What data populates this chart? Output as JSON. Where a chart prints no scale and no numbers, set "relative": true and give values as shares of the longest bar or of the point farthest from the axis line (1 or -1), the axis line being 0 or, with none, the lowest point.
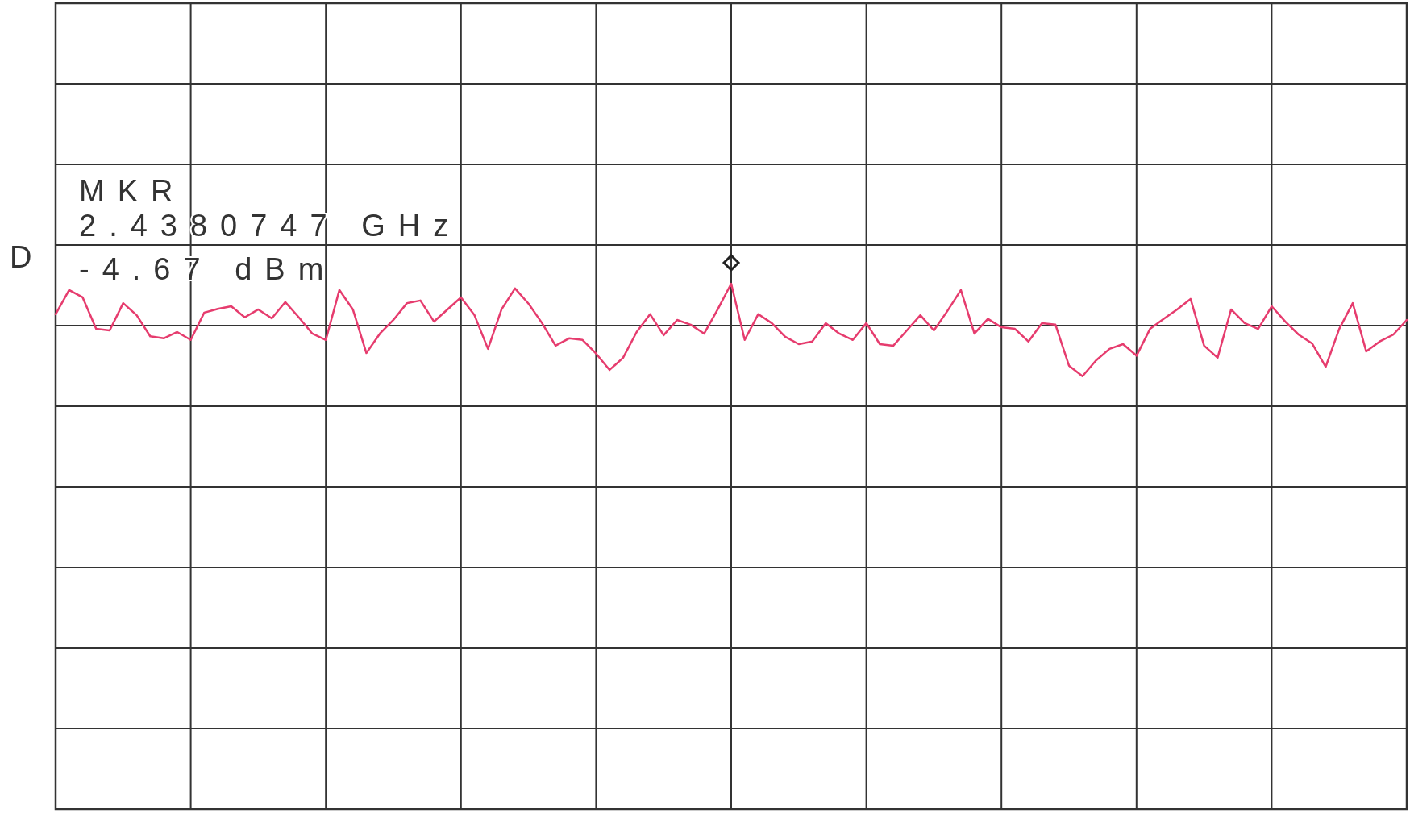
{
  "chart_data": {
    "type": "line",
    "relative": true,
    "grid": true,
    "marker": "none",
    "line_style": "solid",
    "categories": [
      null,
      null,
      null,
      null,
      null,
      null,
      null,
      null,
      null,
      null,
      null,
      null,
      null,
      null,
      null,
      null,
      null,
      null,
      null,
      null,
      null,
      null,
      null,
      null,
      null,
      null,
      null,
      null,
      null,
      null,
      null,
      null,
      null,
      null,
      null,
      null,
      null,
      null,
      null,
      null,
      null,
      null,
      null,
      null,
      null,
      null,
      null,
      null,
      null,
      null,
      null,
      null,
      null,
      null,
      null,
      null,
      null,
      null,
      null,
      null,
      null,
      null,
      null,
      null,
      null,
      null,
      null,
      null,
      null,
      null,
      null,
      null,
      null,
      null,
      null,
      null,
      null,
      null,
      null,
      null,
      null,
      null,
      null,
      null,
      null,
      null,
      null,
      null,
      null,
      null,
      null,
      null,
      null,
      null,
      null,
      null,
      null,
      null,
      null,
      null,
      null
    ],
    "series": [
      {
        "color": "#e63c6e",
        "values": [
          0.942,
          0.988,
          0.974,
          0.914,
          0.911,
          0.963,
          0.94,
          0.9,
          0.896,
          0.908,
          0.893,
          0.945,
          0.952,
          0.957,
          0.936,
          0.951,
          0.934,
          0.965,
          0.936,
          0.905,
          0.893,
          0.988,
          0.951,
          0.868,
          0.905,
          0.931,
          0.963,
          0.968,
          0.928,
          0.951,
          0.974,
          0.94,
          0.876,
          0.951,
          0.991,
          0.962,
          0.925,
          0.882,
          0.896,
          0.893,
          0.867,
          0.836,
          0.859,
          0.908,
          0.942,
          0.902,
          0.931,
          0.922,
          0.905,
          0.951,
          1,
          0.893,
          0.942,
          0.925,
          0.899,
          0.885,
          0.89,
          0.925,
          0.905,
          0.893,
          0.925,
          0.885,
          0.882,
          0.911,
          0.94,
          0.911,
          0.948,
          0.988,
          0.905,
          0.933,
          0.917,
          0.914,
          0.89,
          0.925,
          0.922,
          0.844,
          0.824,
          0.854,
          0.876,
          0.885,
          0.863,
          0.914,
          0.933,
          0.951,
          0.971,
          0.882,
          0.859,
          0.951,
          0.925,
          0.914,
          0.957,
          0.928,
          0.903,
          0.886,
          0.842,
          0.914,
          0.963,
          0.871,
          0.89,
          0.903,
          0.931
        ]
      }
    ],
    "annotations": [
      "MKR",
      "2.4380747 GHz",
      "-4.67 dBm",
      "D"
    ]
  }
}
